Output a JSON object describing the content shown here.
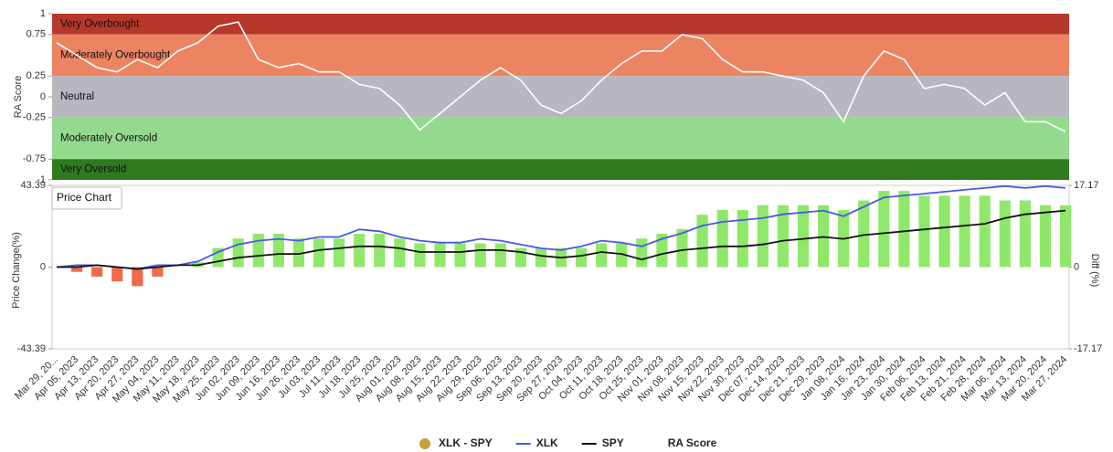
{
  "chart_data": [
    {
      "type": "band_line",
      "ylabel": "RA Score",
      "ylim": [
        -1,
        1
      ],
      "yticks": [
        1,
        0.75,
        0.25,
        0,
        -0.25,
        -0.75,
        -1
      ],
      "bands": [
        {
          "label": "Very Overbought",
          "from": 0.75,
          "to": 1,
          "color": "#b5382a"
        },
        {
          "label": "Moderately Overbought",
          "from": 0.25,
          "to": 0.75,
          "color": "#ec8462"
        },
        {
          "label": "Neutral",
          "from": -0.25,
          "to": 0.25,
          "color": "#b7b7bf"
        },
        {
          "label": "Moderately Oversold",
          "from": -0.75,
          "to": -0.25,
          "color": "#93da8e"
        },
        {
          "label": "Very Oversold",
          "from": -1,
          "to": -0.75,
          "color": "#2f7a1e"
        }
      ],
      "series": [
        {
          "name": "RA Score",
          "color": "#ffffff",
          "values": [
            0.65,
            0.5,
            0.35,
            0.3,
            0.45,
            0.35,
            0.55,
            0.65,
            0.85,
            0.9,
            0.45,
            0.35,
            0.4,
            0.3,
            0.3,
            0.15,
            0.1,
            -0.1,
            -0.4,
            -0.2,
            0.0,
            0.2,
            0.35,
            0.2,
            -0.1,
            -0.2,
            -0.05,
            0.2,
            0.4,
            0.55,
            0.55,
            0.75,
            0.7,
            0.45,
            0.3,
            0.3,
            0.25,
            0.2,
            0.05,
            -0.3,
            0.25,
            0.55,
            0.45,
            0.1,
            0.15,
            0.1,
            -0.1,
            0.05,
            -0.3,
            -0.3,
            -0.42
          ]
        }
      ]
    },
    {
      "type": "combo",
      "title": "Price Chart",
      "ylabel": "Price Change(%)",
      "y2label": "Diff (%)",
      "categories": [
        "Mar 29, 20...",
        "Apr 05, 2023",
        "Apr 13, 2023",
        "Apr 20, 2023",
        "Apr 27, 2023",
        "May 04, 2023",
        "May 11, 2023",
        "May 18, 2023",
        "May 25, 2023",
        "Jun 02, 2023",
        "Jun 09, 2023",
        "Jun 16, 2023",
        "Jun 26, 2023",
        "Jul 03, 2023",
        "Jul 11, 2023",
        "Jul 18, 2023",
        "Jul 25, 2023",
        "Aug 01, 2023",
        "Aug 08, 2023",
        "Aug 15, 2023",
        "Aug 22, 2023",
        "Aug 29, 2023",
        "Sep 06, 2023",
        "Sep 13, 2023",
        "Sep 20, 2023",
        "Sep 27, 2023",
        "Oct 04, 2023",
        "Oct 11, 2023",
        "Oct 18, 2023",
        "Oct 25, 2023",
        "Nov 01, 2023",
        "Nov 08, 2023",
        "Nov 15, 2023",
        "Nov 22, 2023",
        "Nov 30, 2023",
        "Dec 07, 2023",
        "Dec 14, 2023",
        "Dec 21, 2023",
        "Dec 29, 2023",
        "Jan 08, 2024",
        "Jan 16, 2024",
        "Jan 23, 2024",
        "Jan 30, 2024",
        "Feb 06, 2024",
        "Feb 13, 2024",
        "Feb 21, 2024",
        "Feb 28, 2024",
        "Mar 06, 2024",
        "Mar 13, 2024",
        "Mar 20, 2024",
        "Mar 27, 2024"
      ],
      "ylim": [
        -43.39,
        43.39
      ],
      "yticks": [
        -43.39,
        0,
        43.39
      ],
      "y2lim": [
        -17.17,
        17.17
      ],
      "y2ticks": [
        -17.17,
        0,
        17.17
      ],
      "series": [
        {
          "name": "XLK - SPY",
          "type": "bar",
          "axis": "y2",
          "color": "#c9a03c",
          "positive_color": "#8fe86a",
          "negative_color": "#ef6a4a",
          "values": [
            0,
            -1,
            -2,
            -3,
            -4,
            -2,
            0,
            1,
            4,
            6,
            7,
            7,
            6,
            6,
            6,
            7,
            7,
            6,
            5,
            5,
            5,
            5,
            5,
            4,
            4,
            4,
            4,
            5,
            5,
            6,
            7,
            8,
            11,
            12,
            12,
            13,
            13,
            13,
            13,
            12,
            14,
            16,
            16,
            15,
            15,
            15,
            15,
            14,
            14,
            13,
            13
          ]
        },
        {
          "name": "XLK",
          "type": "line",
          "color": "#4a57e6",
          "values": [
            0,
            1,
            1,
            0,
            -1,
            1,
            1,
            3,
            8,
            12,
            14,
            15,
            14,
            16,
            16,
            20,
            19,
            16,
            14,
            13,
            13,
            15,
            14,
            12,
            10,
            9,
            11,
            14,
            13,
            11,
            15,
            18,
            22,
            24,
            25,
            26,
            28,
            29,
            30,
            27,
            32,
            37,
            38,
            39,
            40,
            41,
            42,
            43,
            42,
            43,
            42
          ]
        },
        {
          "name": "SPY",
          "type": "line",
          "color": "#111111",
          "values": [
            0,
            0,
            1,
            0,
            -1,
            0,
            1,
            1,
            3,
            5,
            6,
            7,
            7,
            9,
            10,
            11,
            11,
            10,
            8,
            8,
            8,
            9,
            9,
            8,
            6,
            5,
            6,
            8,
            7,
            4,
            7,
            9,
            10,
            11,
            11,
            12,
            14,
            15,
            16,
            15,
            17,
            18,
            19,
            20,
            21,
            22,
            23,
            26,
            28,
            29,
            30
          ]
        }
      ]
    }
  ]
}
